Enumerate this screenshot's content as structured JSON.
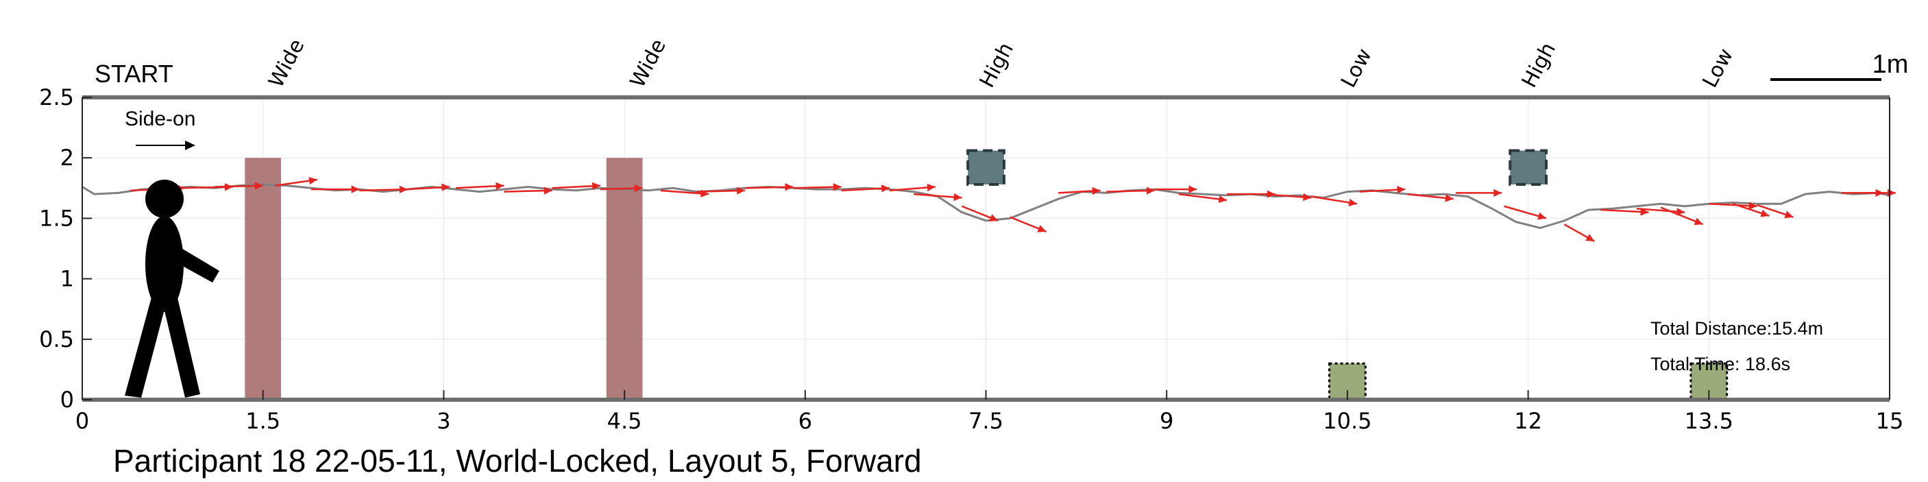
{
  "chart_data": {
    "type": "line",
    "title": "Participant 18 22-05-11, World-Locked, Layout 5, Forward",
    "xlim": [
      0,
      15
    ],
    "ylim": [
      0,
      2.5
    ],
    "x_ticks": [
      0,
      1.5,
      3,
      4.5,
      6,
      7.5,
      9,
      10.5,
      12,
      13.5,
      15
    ],
    "x_tick_labels": [
      "0",
      "1.5",
      "3",
      "4.5",
      "6",
      "7.5",
      "9",
      "10.5",
      "12",
      "13.5",
      "15"
    ],
    "y_ticks": [
      0,
      0.5,
      1,
      1.5,
      2,
      2.5
    ],
    "y_tick_labels": [
      "0",
      "0.5",
      "1",
      "1.5",
      "2",
      "2.5"
    ],
    "grid": true,
    "start_label": "START",
    "scale_bar_label": "1m",
    "direction_label": "Side-on",
    "top_labels": [
      {
        "x": 1.6,
        "text": "Wide"
      },
      {
        "x": 4.6,
        "text": "Wide"
      },
      {
        "x": 7.5,
        "text": "High"
      },
      {
        "x": 10.5,
        "text": "Low"
      },
      {
        "x": 12.0,
        "text": "High"
      },
      {
        "x": 13.5,
        "text": "Low"
      }
    ],
    "obstacles": [
      {
        "kind": "wide",
        "x0": 1.35,
        "x1": 1.65,
        "y0": 0,
        "y1": 2.0,
        "color": "#b07b7b"
      },
      {
        "kind": "wide",
        "x0": 4.35,
        "x1": 4.65,
        "y0": 0,
        "y1": 2.0,
        "color": "#b07b7b"
      },
      {
        "kind": "high",
        "x0": 7.35,
        "x1": 7.65,
        "y0": 1.78,
        "y1": 2.06,
        "color": "#607b80"
      },
      {
        "kind": "high",
        "x0": 11.85,
        "x1": 12.15,
        "y0": 1.78,
        "y1": 2.06,
        "color": "#607b80"
      },
      {
        "kind": "low",
        "x0": 10.35,
        "x1": 10.65,
        "y0": 0,
        "y1": 0.3,
        "color": "#9aaa78"
      },
      {
        "kind": "low",
        "x0": 13.35,
        "x1": 13.65,
        "y0": 0,
        "y1": 0.3,
        "color": "#9aaa78"
      }
    ],
    "path": {
      "color": "#808080",
      "points": [
        [
          0,
          1.76
        ],
        [
          0.1,
          1.7
        ],
        [
          0.3,
          1.71
        ],
        [
          0.5,
          1.74
        ],
        [
          0.7,
          1.75
        ],
        [
          0.9,
          1.76
        ],
        [
          1.1,
          1.75
        ],
        [
          1.3,
          1.77
        ],
        [
          1.5,
          1.78
        ],
        [
          1.7,
          1.77
        ],
        [
          1.9,
          1.75
        ],
        [
          2.1,
          1.73
        ],
        [
          2.3,
          1.74
        ],
        [
          2.5,
          1.72
        ],
        [
          2.7,
          1.74
        ],
        [
          2.9,
          1.76
        ],
        [
          3.1,
          1.74
        ],
        [
          3.3,
          1.72
        ],
        [
          3.5,
          1.74
        ],
        [
          3.7,
          1.76
        ],
        [
          3.9,
          1.74
        ],
        [
          4.1,
          1.73
        ],
        [
          4.3,
          1.75
        ],
        [
          4.5,
          1.74
        ],
        [
          4.7,
          1.73
        ],
        [
          4.9,
          1.75
        ],
        [
          5.1,
          1.72
        ],
        [
          5.3,
          1.73
        ],
        [
          5.5,
          1.75
        ],
        [
          5.7,
          1.76
        ],
        [
          5.9,
          1.75
        ],
        [
          6.1,
          1.74
        ],
        [
          6.3,
          1.74
        ],
        [
          6.5,
          1.75
        ],
        [
          6.7,
          1.74
        ],
        [
          6.9,
          1.72
        ],
        [
          7.1,
          1.68
        ],
        [
          7.3,
          1.55
        ],
        [
          7.5,
          1.48
        ],
        [
          7.7,
          1.5
        ],
        [
          7.9,
          1.58
        ],
        [
          8.1,
          1.66
        ],
        [
          8.3,
          1.72
        ],
        [
          8.5,
          1.71
        ],
        [
          8.7,
          1.73
        ],
        [
          8.9,
          1.74
        ],
        [
          9.1,
          1.71
        ],
        [
          9.3,
          1.7
        ],
        [
          9.5,
          1.69
        ],
        [
          9.7,
          1.7
        ],
        [
          9.9,
          1.68
        ],
        [
          10.1,
          1.69
        ],
        [
          10.3,
          1.67
        ],
        [
          10.5,
          1.72
        ],
        [
          10.7,
          1.73
        ],
        [
          10.9,
          1.71
        ],
        [
          11.1,
          1.69
        ],
        [
          11.3,
          1.7
        ],
        [
          11.5,
          1.68
        ],
        [
          11.7,
          1.58
        ],
        [
          11.9,
          1.47
        ],
        [
          12.1,
          1.42
        ],
        [
          12.3,
          1.48
        ],
        [
          12.5,
          1.57
        ],
        [
          12.7,
          1.58
        ],
        [
          12.9,
          1.6
        ],
        [
          13.1,
          1.62
        ],
        [
          13.3,
          1.6
        ],
        [
          13.5,
          1.62
        ],
        [
          13.7,
          1.63
        ],
        [
          13.9,
          1.62
        ],
        [
          14.1,
          1.62
        ],
        [
          14.3,
          1.7
        ],
        [
          14.5,
          1.72
        ],
        [
          14.7,
          1.7
        ],
        [
          14.9,
          1.71
        ],
        [
          15.0,
          1.69
        ]
      ]
    },
    "heading_arrows": {
      "color": "#e8221e",
      "items": [
        [
          0.4,
          1.73,
          0.45,
          0.02
        ],
        [
          0.8,
          1.75,
          0.45,
          0.01
        ],
        [
          1.1,
          1.76,
          0.4,
          0.01
        ],
        [
          1.6,
          1.77,
          0.35,
          0.05
        ],
        [
          1.9,
          1.74,
          0.4,
          0.0
        ],
        [
          2.3,
          1.73,
          0.4,
          0.01
        ],
        [
          2.7,
          1.74,
          0.35,
          0.02
        ],
        [
          3.1,
          1.75,
          0.4,
          0.02
        ],
        [
          3.5,
          1.72,
          0.4,
          0.01
        ],
        [
          3.9,
          1.75,
          0.4,
          0.02
        ],
        [
          4.3,
          1.74,
          0.35,
          0.01
        ],
        [
          4.8,
          1.73,
          0.4,
          -0.03
        ],
        [
          5.1,
          1.72,
          0.4,
          0.01
        ],
        [
          5.5,
          1.75,
          0.4,
          0.01
        ],
        [
          5.9,
          1.75,
          0.4,
          0.01
        ],
        [
          6.3,
          1.73,
          0.4,
          0.02
        ],
        [
          6.7,
          1.73,
          0.38,
          0.03
        ],
        [
          6.9,
          1.7,
          0.4,
          -0.03
        ],
        [
          7.3,
          1.6,
          0.3,
          -0.12
        ],
        [
          7.7,
          1.51,
          0.3,
          -0.12
        ],
        [
          8.1,
          1.71,
          0.35,
          0.02
        ],
        [
          8.5,
          1.72,
          0.4,
          0.01
        ],
        [
          8.9,
          1.74,
          0.35,
          0.0
        ],
        [
          9.1,
          1.7,
          0.4,
          -0.05
        ],
        [
          9.5,
          1.7,
          0.4,
          0.0
        ],
        [
          9.8,
          1.7,
          0.4,
          -0.03
        ],
        [
          10.2,
          1.68,
          0.38,
          -0.06
        ],
        [
          10.6,
          1.72,
          0.38,
          0.02
        ],
        [
          11.0,
          1.7,
          0.38,
          -0.04
        ],
        [
          11.4,
          1.71,
          0.38,
          0.0
        ],
        [
          11.8,
          1.6,
          0.35,
          -0.1
        ],
        [
          12.3,
          1.45,
          0.25,
          -0.14
        ],
        [
          12.6,
          1.57,
          0.4,
          -0.02
        ],
        [
          12.9,
          1.58,
          0.4,
          -0.03
        ],
        [
          13.1,
          1.59,
          0.35,
          -0.14
        ],
        [
          13.5,
          1.62,
          0.4,
          -0.02
        ],
        [
          13.7,
          1.62,
          0.3,
          -0.1
        ],
        [
          13.9,
          1.61,
          0.3,
          -0.1
        ],
        [
          14.6,
          1.71,
          0.35,
          0.0
        ],
        [
          14.8,
          1.71,
          0.25,
          0.0
        ]
      ]
    },
    "annotations": {
      "total_distance": "Total Distance:15.4m",
      "total_time": "Total Time: 18.6s"
    }
  }
}
